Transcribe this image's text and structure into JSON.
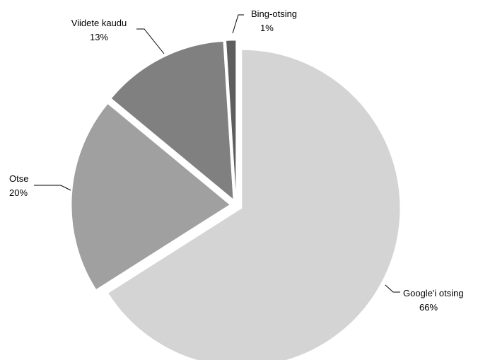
{
  "chart_data": {
    "type": "pie",
    "title": "",
    "slices": [
      {
        "label": "Google'i otsing",
        "percent_label": "66%",
        "value": 66,
        "color": "#d4d4d4"
      },
      {
        "label": "Otse",
        "percent_label": "20%",
        "value": 20,
        "color": "#a0a0a0"
      },
      {
        "label": "Viidete kaudu",
        "percent_label": "13%",
        "value": 13,
        "color": "#808080"
      },
      {
        "label": "Bing-otsing",
        "percent_label": "1%",
        "value": 1,
        "color": "#5e5e5e"
      }
    ]
  }
}
